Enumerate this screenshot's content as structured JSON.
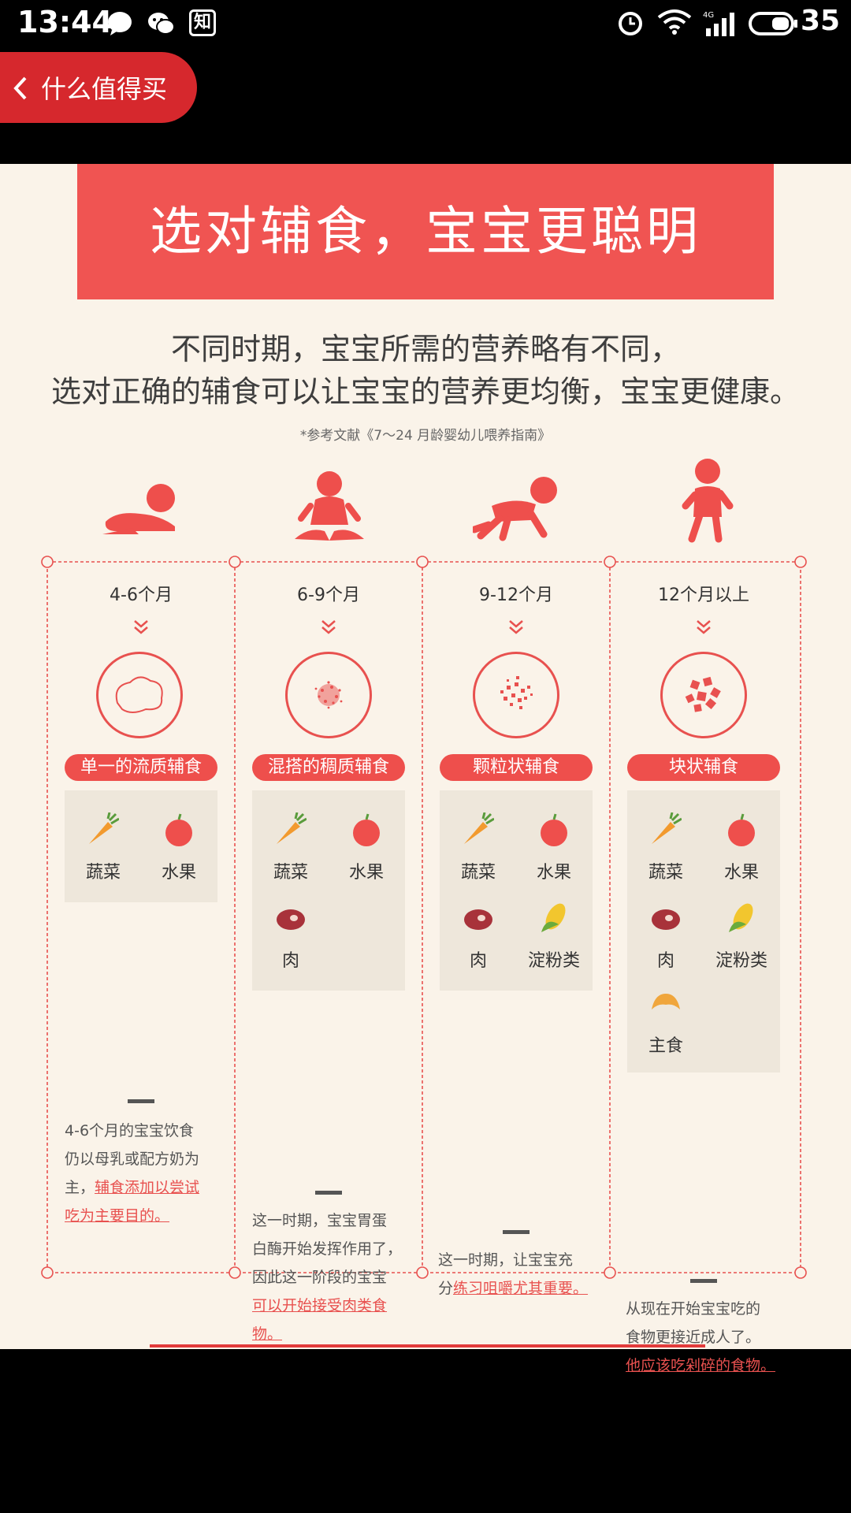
{
  "status_bar": {
    "time": "13:44",
    "battery": "35"
  },
  "nav": {
    "back_label": "什么值得买"
  },
  "banner": {
    "title": "选对辅食，宝宝更聪明"
  },
  "intro": {
    "line1": "不同时期，宝宝所需的营养略有不同，",
    "line2": "选对正确的辅食可以让宝宝的营养更均衡，宝宝更健康。"
  },
  "reference": "*参考文献《7～24 月龄婴幼儿喂养指南》",
  "colors": {
    "accent": "#f05452",
    "background": "#faf3e9",
    "food_box": "#eee7db"
  },
  "stages": [
    {
      "age": "4-6个月",
      "type": "单一的流质辅食",
      "foods": [
        "蔬菜",
        "水果"
      ],
      "desc_lines": [
        "4-6个月的宝宝饮食",
        "仍以母乳或配方奶为",
        "主，"
      ],
      "desc_highlight": [
        "辅食添加以尝试",
        "吃为主要目的。"
      ]
    },
    {
      "age": "6-9个月",
      "type": "混搭的稠质辅食",
      "foods": [
        "蔬菜",
        "水果",
        "肉"
      ],
      "desc_lines": [
        "这一时期，宝宝胃蛋",
        "白酶开始发挥作用了，",
        "因此这一阶段的宝宝"
      ],
      "desc_highlight": [
        "可以开始接受肉类食",
        "物。"
      ]
    },
    {
      "age": "9-12个月",
      "type": "颗粒状辅食",
      "foods": [
        "蔬菜",
        "水果",
        "肉",
        "淀粉类"
      ],
      "desc_lines": [
        "这一时期，让宝宝充",
        "分"
      ],
      "desc_highlight": [
        "练习咀嚼尤其重要。"
      ]
    },
    {
      "age": "12个月以上",
      "type": "块状辅食",
      "foods": [
        "蔬菜",
        "水果",
        "肉",
        "淀粉类",
        "主食"
      ],
      "desc_lines": [
        "从现在开始宝宝吃的",
        "食物更接近成人了。"
      ],
      "desc_highlight": [
        "他应该吃剁碎的食物。"
      ]
    }
  ]
}
